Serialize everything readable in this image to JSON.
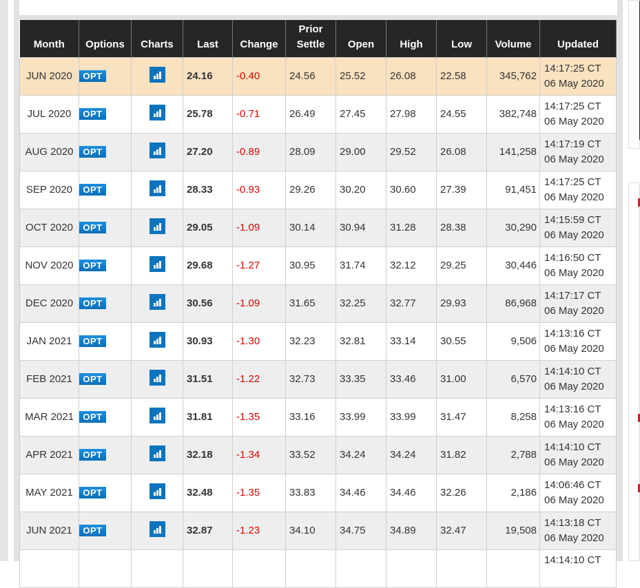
{
  "columns": [
    "Month",
    "Options",
    "Charts",
    "Last",
    "Change",
    "Prior Settle",
    "Open",
    "High",
    "Low",
    "Volume",
    "Updated"
  ],
  "opt_label": "OPT",
  "icons": {
    "options": "opt-badge",
    "charts": "bar-chart-icon"
  },
  "colors": {
    "header_bg": "#262626",
    "highlight_row": "#fae1bf",
    "negative_change": "#e00000",
    "icon_blue": "#0c74bf"
  },
  "rows": [
    {
      "month": "JUN 2020",
      "last": "24.16",
      "change": "-0.40",
      "prior": "24.56",
      "open": "25.52",
      "high": "26.08",
      "low": "22.58",
      "volume": "345,762",
      "time": "14:17:25 CT",
      "date": "06 May 2020"
    },
    {
      "month": "JUL 2020",
      "last": "25.78",
      "change": "-0.71",
      "prior": "26.49",
      "open": "27.45",
      "high": "27.98",
      "low": "24.55",
      "volume": "382,748",
      "time": "14:17:25 CT",
      "date": "06 May 2020"
    },
    {
      "month": "AUG 2020",
      "last": "27.20",
      "change": "-0.89",
      "prior": "28.09",
      "open": "29.00",
      "high": "29.52",
      "low": "26.08",
      "volume": "141,258",
      "time": "14:17:19 CT",
      "date": "06 May 2020"
    },
    {
      "month": "SEP 2020",
      "last": "28.33",
      "change": "-0.93",
      "prior": "29.26",
      "open": "30.20",
      "high": "30.60",
      "low": "27.39",
      "volume": "91,451",
      "time": "14:17:25 CT",
      "date": "06 May 2020"
    },
    {
      "month": "OCT 2020",
      "last": "29.05",
      "change": "-1.09",
      "prior": "30.14",
      "open": "30.94",
      "high": "31.28",
      "low": "28.38",
      "volume": "30,290",
      "time": "14:15:59 CT",
      "date": "06 May 2020"
    },
    {
      "month": "NOV 2020",
      "last": "29.68",
      "change": "-1.27",
      "prior": "30.95",
      "open": "31.74",
      "high": "32.12",
      "low": "29.25",
      "volume": "30,446",
      "time": "14:16:50 CT",
      "date": "06 May 2020"
    },
    {
      "month": "DEC 2020",
      "last": "30.56",
      "change": "-1.09",
      "prior": "31.65",
      "open": "32.25",
      "high": "32.77",
      "low": "29.93",
      "volume": "86,968",
      "time": "14:17:17 CT",
      "date": "06 May 2020"
    },
    {
      "month": "JAN 2021",
      "last": "30.93",
      "change": "-1.30",
      "prior": "32.23",
      "open": "32.81",
      "high": "33.14",
      "low": "30.55",
      "volume": "9,506",
      "time": "14:13:16 CT",
      "date": "06 May 2020"
    },
    {
      "month": "FEB 2021",
      "last": "31.51",
      "change": "-1.22",
      "prior": "32.73",
      "open": "33.35",
      "high": "33.46",
      "low": "31.00",
      "volume": "6,570",
      "time": "14:14:10 CT",
      "date": "06 May 2020"
    },
    {
      "month": "MAR 2021",
      "last": "31.81",
      "change": "-1.35",
      "prior": "33.16",
      "open": "33.99",
      "high": "33.99",
      "low": "31.47",
      "volume": "8,258",
      "time": "14:13:16 CT",
      "date": "06 May 2020"
    },
    {
      "month": "APR 2021",
      "last": "32.18",
      "change": "-1.34",
      "prior": "33.52",
      "open": "34.24",
      "high": "34.24",
      "low": "31.82",
      "volume": "2,788",
      "time": "14:14:10 CT",
      "date": "06 May 2020"
    },
    {
      "month": "MAY 2021",
      "last": "32.48",
      "change": "-1.35",
      "prior": "33.83",
      "open": "34.46",
      "high": "34.46",
      "low": "32.26",
      "volume": "2,186",
      "time": "14:06:46 CT",
      "date": "06 May 2020"
    },
    {
      "month": "JUN 2021",
      "last": "32.87",
      "change": "-1.23",
      "prior": "34.10",
      "open": "34.75",
      "high": "34.89",
      "low": "32.47",
      "volume": "19,508",
      "time": "14:13:18 CT",
      "date": "06 May 2020"
    },
    {
      "time": "14:14:10 CT"
    }
  ]
}
